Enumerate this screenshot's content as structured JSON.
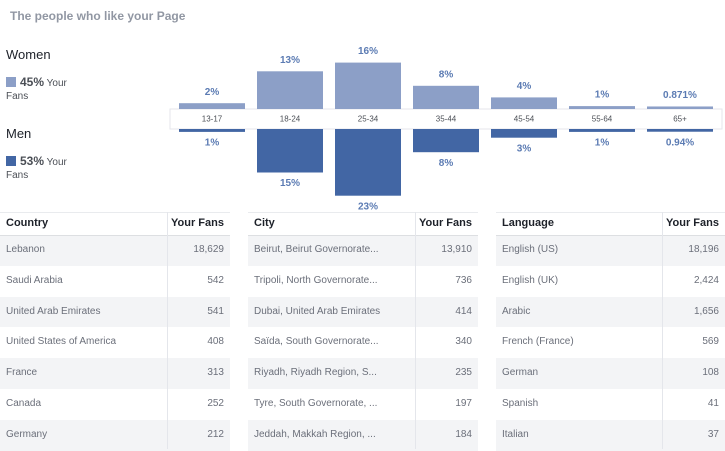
{
  "header": {
    "title": "The people who like your Page"
  },
  "legend": [
    {
      "name": "Women",
      "share": "45%",
      "caption": "Your Fans"
    },
    {
      "name": "Men",
      "share": "53%",
      "caption": "Your Fans"
    }
  ],
  "chart_data": {
    "type": "bar",
    "categories": [
      "13-17",
      "18-24",
      "25-34",
      "35-44",
      "45-54",
      "55-64",
      "65+"
    ],
    "series": [
      {
        "name": "Women",
        "color": "#8c9fc7",
        "values": [
          2,
          13,
          16,
          8,
          4,
          1,
          0.871
        ],
        "value_labels": [
          "2%",
          "13%",
          "16%",
          "8%",
          "4%",
          "1%",
          "0.871%"
        ]
      },
      {
        "name": "Men",
        "color": "#4266a4",
        "values": [
          1,
          15,
          23,
          8,
          3,
          1,
          0.94
        ],
        "value_labels": [
          "1%",
          "15%",
          "23%",
          "8%",
          "3%",
          "1%",
          "0.94%"
        ]
      }
    ]
  },
  "tables": [
    {
      "headers": [
        "Country",
        "Your Fans"
      ],
      "rows": [
        [
          "Lebanon",
          "18,629"
        ],
        [
          "Saudi Arabia",
          "542"
        ],
        [
          "United Arab Emirates",
          "541"
        ],
        [
          "United States of America",
          "408"
        ],
        [
          "France",
          "313"
        ],
        [
          "Canada",
          "252"
        ],
        [
          "Germany",
          "212"
        ]
      ]
    },
    {
      "headers": [
        "City",
        "Your Fans"
      ],
      "rows": [
        [
          "Beirut, Beirut Governorate...",
          "13,910"
        ],
        [
          "Tripoli, North Governorate...",
          "736"
        ],
        [
          "Dubai, United Arab Emirates",
          "414"
        ],
        [
          "Saïda, South Governorate...",
          "340"
        ],
        [
          "Riyadh, Riyadh Region, S...",
          "235"
        ],
        [
          "Tyre, South Governorate, ...",
          "197"
        ],
        [
          "Jeddah, Makkah Region, ...",
          "184"
        ]
      ]
    },
    {
      "headers": [
        "Language",
        "Your Fans"
      ],
      "rows": [
        [
          "English (US)",
          "18,196"
        ],
        [
          "English (UK)",
          "2,424"
        ],
        [
          "Arabic",
          "1,656"
        ],
        [
          "French (France)",
          "569"
        ],
        [
          "German",
          "108"
        ],
        [
          "Spanish",
          "41"
        ],
        [
          "Italian",
          "37"
        ]
      ]
    }
  ]
}
